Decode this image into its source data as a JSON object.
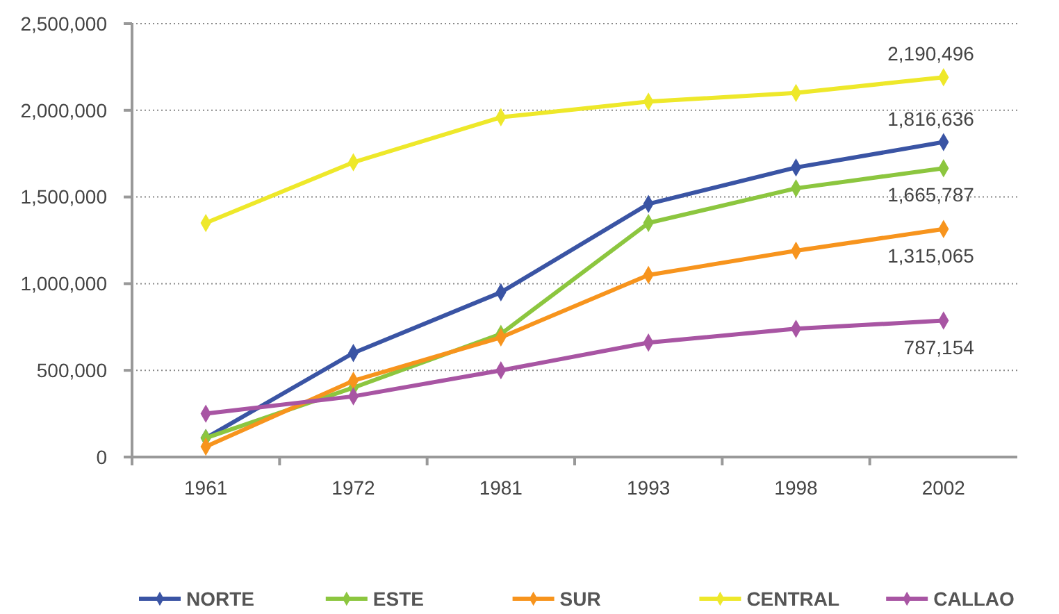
{
  "chart_data": {
    "type": "line",
    "categories": [
      "1961",
      "1972",
      "1981",
      "1993",
      "1998",
      "2002"
    ],
    "series": [
      {
        "name": "NORTE",
        "color": "#3a54a4",
        "values": [
          110000,
          600000,
          950000,
          1460000,
          1670000,
          1816636
        ],
        "value_labels": [
          null,
          null,
          null,
          null,
          null,
          "1,816,636"
        ]
      },
      {
        "name": "ESTE",
        "color": "#8cc63f",
        "values": [
          110000,
          400000,
          710000,
          1350000,
          1550000,
          1665787
        ],
        "value_labels": [
          null,
          null,
          null,
          null,
          null,
          "1,665,787"
        ]
      },
      {
        "name": "SUR",
        "color": "#f7941d",
        "values": [
          60000,
          440000,
          690000,
          1050000,
          1190000,
          1315065
        ],
        "value_labels": [
          null,
          null,
          null,
          null,
          null,
          "1,315,065"
        ]
      },
      {
        "name": "CENTRAL",
        "color": "#eee82a",
        "values": [
          1350000,
          1700000,
          1960000,
          2050000,
          2100000,
          2190496
        ],
        "value_labels": [
          null,
          null,
          null,
          null,
          null,
          "2,190,496"
        ]
      },
      {
        "name": "CALLAO",
        "color": "#a855a3",
        "values": [
          250000,
          350000,
          500000,
          660000,
          740000,
          787154
        ],
        "value_labels": [
          null,
          null,
          null,
          null,
          null,
          "787,154"
        ]
      }
    ],
    "ylim": [
      0,
      2500000
    ],
    "yticks": [
      {
        "value": 0,
        "label": "0"
      },
      {
        "value": 500000,
        "label": "500,000"
      },
      {
        "value": 1000000,
        "label": "1,000,000"
      },
      {
        "value": 1500000,
        "label": "1,500,000"
      },
      {
        "value": 2000000,
        "label": "2,000,000"
      },
      {
        "value": 2500000,
        "label": "2,500,000"
      }
    ],
    "grid": "y",
    "legend": "bottom",
    "marker": "diamond",
    "line_style": "solid"
  }
}
